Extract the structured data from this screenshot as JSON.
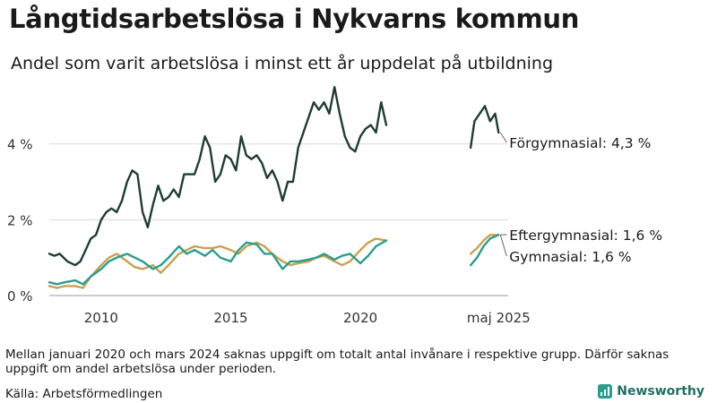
{
  "header": {
    "title": "Långtidsarbetslösa i Nykvarns kommun",
    "subtitle": "Andel som varit arbetslösa i minst ett år uppdelat på utbildning"
  },
  "footer": {
    "note": "Mellan januari 2020 och mars 2024 saknas uppgift om totalt antal invånare i respektive grupp. Därför saknas uppgift om andel arbetslösa under perioden.",
    "source": "Källa: Arbetsförmedlingen",
    "brand": "Newsworthy"
  },
  "chart_data": {
    "type": "line",
    "x_ticks": [
      {
        "year": 2010,
        "label": "2010"
      },
      {
        "year": 2015,
        "label": "2015"
      },
      {
        "year": 2020,
        "label": "2020"
      },
      {
        "year": 2025.33,
        "label": "maj 2025"
      }
    ],
    "y_ticks": [
      {
        "value": 0,
        "label": "0 %"
      },
      {
        "value": 2,
        "label": "2 %"
      },
      {
        "value": 4,
        "label": "4 %"
      }
    ],
    "ylim": [
      0,
      5.6
    ],
    "xlim": [
      2008.0,
      2025.7
    ],
    "grid": "horizontal",
    "series": [
      {
        "name": "Förgymnasial",
        "label": "Förgymnasial: 4,3 %",
        "color": "#1f3d36",
        "segments": [
          [
            [
              2008.0,
              1.1
            ],
            [
              2008.2,
              1.05
            ],
            [
              2008.4,
              1.1
            ],
            [
              2008.7,
              0.9
            ],
            [
              2009.0,
              0.8
            ],
            [
              2009.2,
              0.9
            ],
            [
              2009.4,
              1.2
            ],
            [
              2009.6,
              1.5
            ],
            [
              2009.8,
              1.6
            ],
            [
              2010.0,
              2.0
            ],
            [
              2010.2,
              2.2
            ],
            [
              2010.4,
              2.3
            ],
            [
              2010.6,
              2.2
            ],
            [
              2010.8,
              2.5
            ],
            [
              2011.0,
              3.0
            ],
            [
              2011.2,
              3.3
            ],
            [
              2011.4,
              3.2
            ],
            [
              2011.6,
              2.2
            ],
            [
              2011.8,
              1.8
            ],
            [
              2012.0,
              2.4
            ],
            [
              2012.2,
              2.9
            ],
            [
              2012.4,
              2.5
            ],
            [
              2012.6,
              2.6
            ],
            [
              2012.8,
              2.8
            ],
            [
              2013.0,
              2.6
            ],
            [
              2013.2,
              3.2
            ],
            [
              2013.4,
              3.2
            ],
            [
              2013.6,
              3.2
            ],
            [
              2013.8,
              3.6
            ],
            [
              2014.0,
              4.2
            ],
            [
              2014.2,
              3.9
            ],
            [
              2014.4,
              3.0
            ],
            [
              2014.6,
              3.2
            ],
            [
              2014.8,
              3.7
            ],
            [
              2015.0,
              3.6
            ],
            [
              2015.2,
              3.3
            ],
            [
              2015.4,
              4.2
            ],
            [
              2015.6,
              3.7
            ],
            [
              2015.8,
              3.6
            ],
            [
              2016.0,
              3.7
            ],
            [
              2016.2,
              3.5
            ],
            [
              2016.4,
              3.1
            ],
            [
              2016.6,
              3.3
            ],
            [
              2016.8,
              3.0
            ],
            [
              2017.0,
              2.5
            ],
            [
              2017.2,
              3.0
            ],
            [
              2017.4,
              3.0
            ],
            [
              2017.6,
              3.9
            ],
            [
              2017.8,
              4.3
            ],
            [
              2018.0,
              4.7
            ],
            [
              2018.2,
              5.1
            ],
            [
              2018.4,
              4.9
            ],
            [
              2018.6,
              5.1
            ],
            [
              2018.8,
              4.8
            ],
            [
              2019.0,
              5.5
            ],
            [
              2019.2,
              4.8
            ],
            [
              2019.4,
              4.2
            ],
            [
              2019.6,
              3.9
            ],
            [
              2019.8,
              3.8
            ],
            [
              2020.0,
              4.2
            ],
            [
              2020.2,
              4.4
            ],
            [
              2020.4,
              4.5
            ],
            [
              2020.6,
              4.3
            ],
            [
              2020.8,
              5.1
            ],
            [
              2021.0,
              4.5
            ]
          ],
          [
            [
              2024.25,
              3.9
            ],
            [
              2024.4,
              4.6
            ],
            [
              2024.6,
              4.8
            ],
            [
              2024.8,
              5.0
            ],
            [
              2025.0,
              4.6
            ],
            [
              2025.2,
              4.8
            ],
            [
              2025.33,
              4.3
            ]
          ]
        ]
      },
      {
        "name": "Eftergymnasial",
        "label": "Eftergymnasial: 1,6 %",
        "color": "#c9a050",
        "segments": [
          [
            [
              2008.0,
              0.25
            ],
            [
              2008.3,
              0.2
            ],
            [
              2008.6,
              0.25
            ],
            [
              2009.0,
              0.25
            ],
            [
              2009.3,
              0.2
            ],
            [
              2009.6,
              0.5
            ],
            [
              2010.0,
              0.8
            ],
            [
              2010.3,
              1.0
            ],
            [
              2010.6,
              1.1
            ],
            [
              2011.0,
              0.9
            ],
            [
              2011.3,
              0.75
            ],
            [
              2011.6,
              0.7
            ],
            [
              2012.0,
              0.8
            ],
            [
              2012.3,
              0.6
            ],
            [
              2012.6,
              0.8
            ],
            [
              2013.0,
              1.1
            ],
            [
              2013.3,
              1.2
            ],
            [
              2013.6,
              1.3
            ],
            [
              2014.0,
              1.25
            ],
            [
              2014.3,
              1.25
            ],
            [
              2014.6,
              1.3
            ],
            [
              2015.0,
              1.2
            ],
            [
              2015.3,
              1.1
            ],
            [
              2015.6,
              1.3
            ],
            [
              2016.0,
              1.4
            ],
            [
              2016.3,
              1.3
            ],
            [
              2016.6,
              1.1
            ],
            [
              2017.0,
              0.9
            ],
            [
              2017.3,
              0.8
            ],
            [
              2017.6,
              0.85
            ],
            [
              2018.0,
              0.9
            ],
            [
              2018.3,
              1.0
            ],
            [
              2018.6,
              1.05
            ],
            [
              2019.0,
              0.9
            ],
            [
              2019.3,
              0.8
            ],
            [
              2019.6,
              0.9
            ],
            [
              2020.0,
              1.2
            ],
            [
              2020.3,
              1.4
            ],
            [
              2020.6,
              1.5
            ],
            [
              2021.0,
              1.45
            ]
          ],
          [
            [
              2024.25,
              1.1
            ],
            [
              2024.5,
              1.25
            ],
            [
              2024.75,
              1.45
            ],
            [
              2025.0,
              1.6
            ],
            [
              2025.33,
              1.6
            ]
          ]
        ]
      },
      {
        "name": "Gymnasial",
        "label": "Gymnasial: 1,6 %",
        "color": "#2a9d8f",
        "segments": [
          [
            [
              2008.0,
              0.35
            ],
            [
              2008.3,
              0.3
            ],
            [
              2008.6,
              0.35
            ],
            [
              2009.0,
              0.4
            ],
            [
              2009.3,
              0.3
            ],
            [
              2009.6,
              0.5
            ],
            [
              2010.0,
              0.7
            ],
            [
              2010.3,
              0.9
            ],
            [
              2010.6,
              1.0
            ],
            [
              2011.0,
              1.1
            ],
            [
              2011.3,
              1.0
            ],
            [
              2011.6,
              0.9
            ],
            [
              2012.0,
              0.7
            ],
            [
              2012.3,
              0.8
            ],
            [
              2012.6,
              1.0
            ],
            [
              2013.0,
              1.3
            ],
            [
              2013.3,
              1.1
            ],
            [
              2013.6,
              1.2
            ],
            [
              2014.0,
              1.05
            ],
            [
              2014.3,
              1.2
            ],
            [
              2014.6,
              1.0
            ],
            [
              2015.0,
              0.9
            ],
            [
              2015.3,
              1.2
            ],
            [
              2015.6,
              1.4
            ],
            [
              2016.0,
              1.35
            ],
            [
              2016.3,
              1.1
            ],
            [
              2016.6,
              1.1
            ],
            [
              2017.0,
              0.7
            ],
            [
              2017.3,
              0.9
            ],
            [
              2017.6,
              0.9
            ],
            [
              2018.0,
              0.95
            ],
            [
              2018.3,
              1.0
            ],
            [
              2018.6,
              1.1
            ],
            [
              2019.0,
              0.95
            ],
            [
              2019.3,
              1.05
            ],
            [
              2019.6,
              1.1
            ],
            [
              2020.0,
              0.85
            ],
            [
              2020.3,
              1.05
            ],
            [
              2020.6,
              1.3
            ],
            [
              2021.0,
              1.45
            ]
          ],
          [
            [
              2024.25,
              0.8
            ],
            [
              2024.5,
              1.0
            ],
            [
              2024.75,
              1.3
            ],
            [
              2025.0,
              1.5
            ],
            [
              2025.33,
              1.6
            ]
          ]
        ]
      }
    ]
  }
}
